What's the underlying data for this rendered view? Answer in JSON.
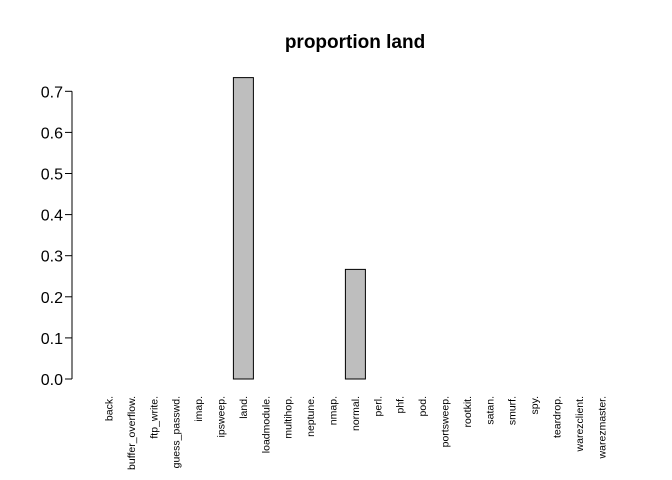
{
  "chart_data": {
    "type": "bar",
    "title": "proportion land",
    "xlabel": "",
    "ylabel": "",
    "categories": [
      "back.",
      "buffer_overflow.",
      "ftp_write.",
      "guess_passwd.",
      "imap.",
      "ipsweep.",
      "land.",
      "loadmodule.",
      "multihop.",
      "neptune.",
      "nmap.",
      "normal.",
      "perl.",
      "phf.",
      "pod.",
      "portsweep.",
      "rootkit.",
      "satan.",
      "smurf.",
      "spy.",
      "teardrop.",
      "warezclient.",
      "warezmaster."
    ],
    "values": [
      0,
      0,
      0,
      0,
      0,
      0,
      0.7333,
      0,
      0,
      0,
      0,
      0.2667,
      0,
      0,
      0,
      0,
      0,
      0,
      0,
      0,
      0,
      0,
      0
    ],
    "yticks": [
      "0.0",
      "0.1",
      "0.2",
      "0.3",
      "0.4",
      "0.5",
      "0.6",
      "0.7"
    ],
    "ylim": [
      0,
      0.7
    ],
    "grid": false,
    "bar_color": "#bebebe",
    "bar_stroke": "#000000"
  }
}
